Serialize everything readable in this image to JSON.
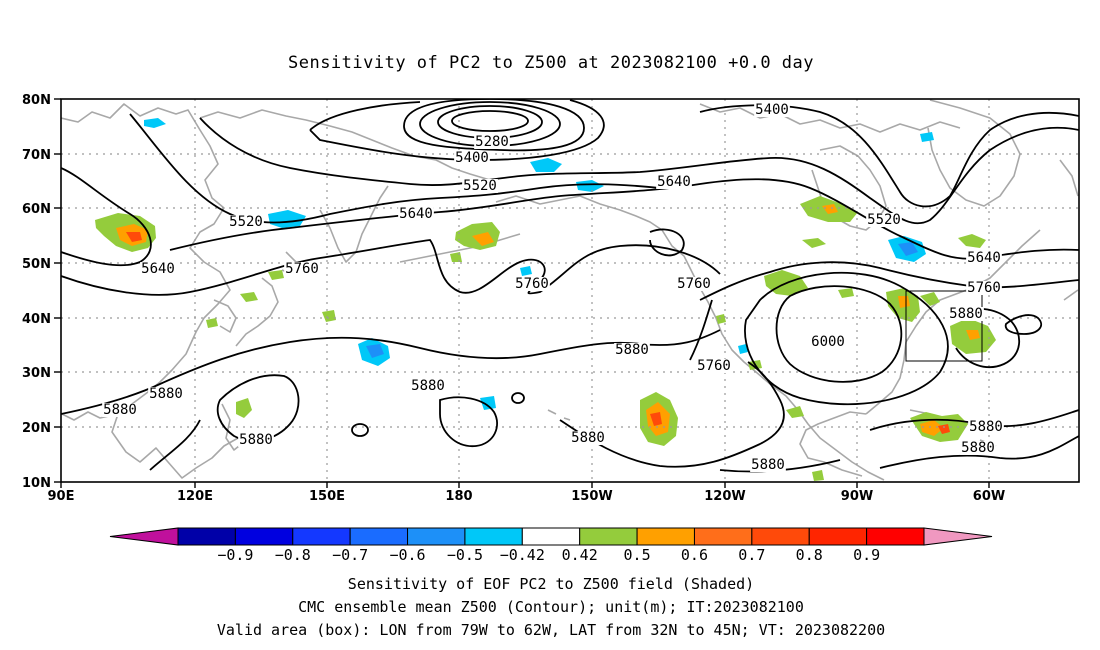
{
  "title": "Sensitivity of PC2 to Z500 at 2023082100 +0.0 day",
  "map": {
    "lat_labels": [
      "80N",
      "70N",
      "60N",
      "50N",
      "40N",
      "30N",
      "20N",
      "10N"
    ],
    "lon_labels": [
      "90E",
      "120E",
      "150E",
      "180",
      "150W",
      "120W",
      "90W",
      "60W"
    ],
    "contour_labels": [
      {
        "text": "5280"
      },
      {
        "text": "5400"
      },
      {
        "text": "5400"
      },
      {
        "text": "5520"
      },
      {
        "text": "5520"
      },
      {
        "text": "5520"
      },
      {
        "text": "5640"
      },
      {
        "text": "5640"
      },
      {
        "text": "5640"
      },
      {
        "text": "5640"
      },
      {
        "text": "5760"
      },
      {
        "text": "5760"
      },
      {
        "text": "5760"
      },
      {
        "text": "5760"
      },
      {
        "text": "5760"
      },
      {
        "text": "6000"
      },
      {
        "text": "5880"
      },
      {
        "text": "5880"
      },
      {
        "text": "5880"
      },
      {
        "text": "5880"
      },
      {
        "text": "5880"
      },
      {
        "text": "5880"
      },
      {
        "text": "5880"
      },
      {
        "text": "5880"
      },
      {
        "text": "5880"
      },
      {
        "text": "5880"
      }
    ],
    "valid_box": {
      "lon_w": "79W",
      "lon_e": "62W",
      "lat_s": "32N",
      "lat_n": "45N"
    }
  },
  "colorbar": {
    "colors": [
      "#c0109c",
      "#0000a8",
      "#0000e0",
      "#1438ff",
      "#1a6cff",
      "#1d90f8",
      "#00c8f8",
      "#ffffff",
      "#94cc3c",
      "#ffa000",
      "#ff6e1a",
      "#ff4a0a",
      "#ff2500",
      "#ff0000",
      "#f098c0"
    ],
    "labels": [
      "−0.9",
      "−0.8",
      "−0.7",
      "−0.6",
      "−0.5",
      "−0.42",
      "0.42",
      "0.5",
      "0.6",
      "0.7",
      "0.8",
      "0.9"
    ]
  },
  "footer": {
    "line1": "Sensitivity of EOF PC2 to Z500 field (Shaded)",
    "line2": "CMC ensemble mean Z500 (Contour); unit(m); IT:2023082100",
    "line3": "Valid area (box): LON from 79W to 62W, LAT from 32N to 45N; VT: 2023082200"
  }
}
